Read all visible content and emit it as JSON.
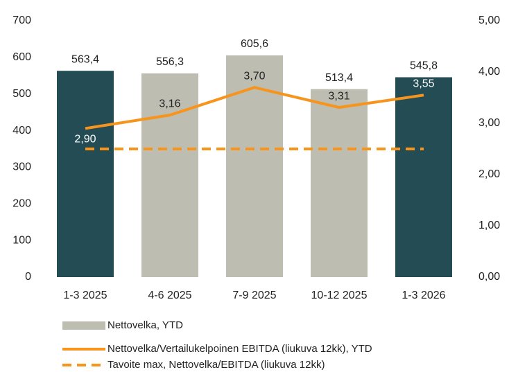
{
  "chart_data": {
    "type": "bar-line",
    "categories": [
      "1-3 2025",
      "4-6 2025",
      "7-9 2025",
      "10-12 2025",
      "1-3 2026"
    ],
    "series": [
      {
        "name": "Nettovelka, YTD",
        "type": "bar",
        "color": "#bdbdb2",
        "colors": [
          "#244c55",
          "#bdbdb2",
          "#bdbdb2",
          "#bdbdb2",
          "#244c55"
        ],
        "values": [
          563.4,
          556.3,
          605.6,
          513.4,
          545.8
        ],
        "value_labels": [
          "563,4",
          "556,3",
          "605,6",
          "513,4",
          "545,8"
        ]
      },
      {
        "name": "Nettovelka/Vertailukelpoinen EBITDA (liukuva 12kk), YTD",
        "type": "line",
        "axis": "y2",
        "color": "#f7941d",
        "values": [
          2.9,
          3.16,
          3.7,
          3.31,
          3.55
        ],
        "value_labels": [
          "2,90",
          "3,16",
          "3,70",
          "3,31",
          "3,55"
        ]
      },
      {
        "name": "Tavoite max, Nettovelka/EBITDA (liukuva 12kk)",
        "type": "line",
        "axis": "y2",
        "color": "#f7941d",
        "dashed": true,
        "values": [
          2.5,
          2.5,
          2.5,
          2.5,
          2.5
        ]
      }
    ],
    "ylim": [
      0,
      700
    ],
    "yticks": [
      0,
      100,
      200,
      300,
      400,
      500,
      600,
      700
    ],
    "y2lim": [
      0,
      5
    ],
    "y2ticks": [
      {
        "value": 0,
        "label": "0,00"
      },
      {
        "value": 1,
        "label": "1,00"
      },
      {
        "value": 2,
        "label": "2,00"
      },
      {
        "value": 3,
        "label": "3,00"
      },
      {
        "value": 4,
        "label": "4,00"
      },
      {
        "value": 5,
        "label": "5,00"
      }
    ]
  }
}
